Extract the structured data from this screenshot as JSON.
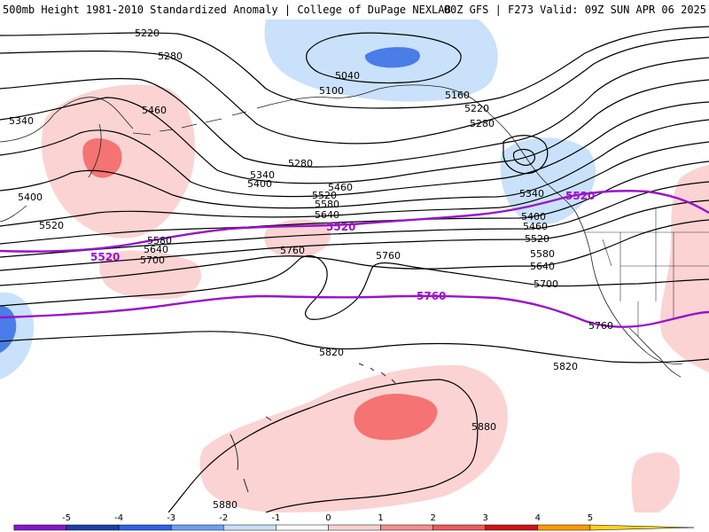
{
  "header": {
    "left": "500mb Height 1981-2010 Standardized Anomaly | College of DuPage NEXLAB",
    "right": "00Z GFS | F273 Valid: 09Z SUN APR 06 2025"
  },
  "contour_labels": [
    "5220",
    "5280",
    "5340",
    "5400",
    "5520",
    "5460",
    "5040",
    "5100",
    "5160",
    "5220",
    "5280",
    "5280",
    "5340",
    "5400",
    "5460",
    "5520",
    "5580",
    "5640",
    "5580",
    "5640",
    "5700",
    "5760",
    "5760",
    "5340",
    "5400",
    "5460",
    "5520",
    "5580",
    "5640",
    "5700",
    "5760",
    "5820",
    "5820",
    "5880",
    "5880"
  ],
  "highlight_labels": [
    "5520",
    "5520",
    "5520",
    "5760"
  ],
  "legend": {
    "ticks": [
      "-5",
      "-4",
      "-3",
      "-2",
      "-1",
      "0",
      "1",
      "2",
      "3",
      "4",
      "5"
    ],
    "colors": [
      "#e066e0",
      "#8a16c8",
      "#1c3fa8",
      "#2f63e6",
      "#6f9ff3",
      "#c6e0fb",
      "#ffffff",
      "#fbd3d3",
      "#f78e8e",
      "#ee5a5a",
      "#cf1414",
      "#ff9a00",
      "#ffd21f"
    ]
  },
  "colors": {
    "positive_light": "#fbd3d3",
    "positive_mid": "#f57373",
    "negative_light": "#c9e1fa",
    "negative_mid": "#4a7de8",
    "highlight_contour": "#9a14c8"
  }
}
